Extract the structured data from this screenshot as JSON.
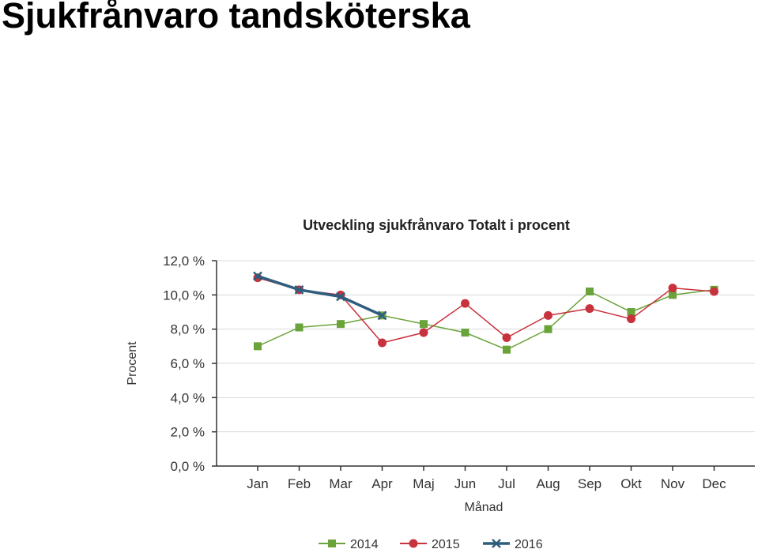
{
  "page": {
    "title": "Sjukfrånvaro tandsköterska"
  },
  "chart_data": {
    "type": "line",
    "title": "Utveckling sjukfrånvaro Totalt i procent",
    "xlabel": "Månad",
    "ylabel": "Procent",
    "categories": [
      "Jan",
      "Feb",
      "Mar",
      "Apr",
      "Maj",
      "Jun",
      "Jul",
      "Aug",
      "Sep",
      "Okt",
      "Nov",
      "Dec"
    ],
    "ylim": [
      0,
      12
    ],
    "yticks": [
      0,
      2,
      4,
      6,
      8,
      10,
      12
    ],
    "ytick_labels": [
      "0,0 %",
      "2,0 %",
      "4,0 %",
      "6,0 %",
      "8,0 %",
      "10,0 %",
      "12,0 %"
    ],
    "grid": true,
    "legend_position": "bottom",
    "series": [
      {
        "name": "2014",
        "color": "#6aa33a",
        "marker": "square",
        "values": [
          7.0,
          8.1,
          8.3,
          8.8,
          8.3,
          7.8,
          6.8,
          8.0,
          10.2,
          9.0,
          10.0,
          10.3
        ]
      },
      {
        "name": "2015",
        "color": "#c8323c",
        "marker": "circle",
        "values": [
          11.0,
          10.3,
          10.0,
          7.2,
          7.8,
          9.5,
          7.5,
          8.8,
          9.2,
          8.6,
          10.4,
          10.2
        ]
      },
      {
        "name": "2016",
        "color": "#2e5d7e",
        "marker": "x",
        "values": [
          11.1,
          10.3,
          9.9,
          8.8,
          null,
          null,
          null,
          null,
          null,
          null,
          null,
          null
        ]
      }
    ]
  }
}
